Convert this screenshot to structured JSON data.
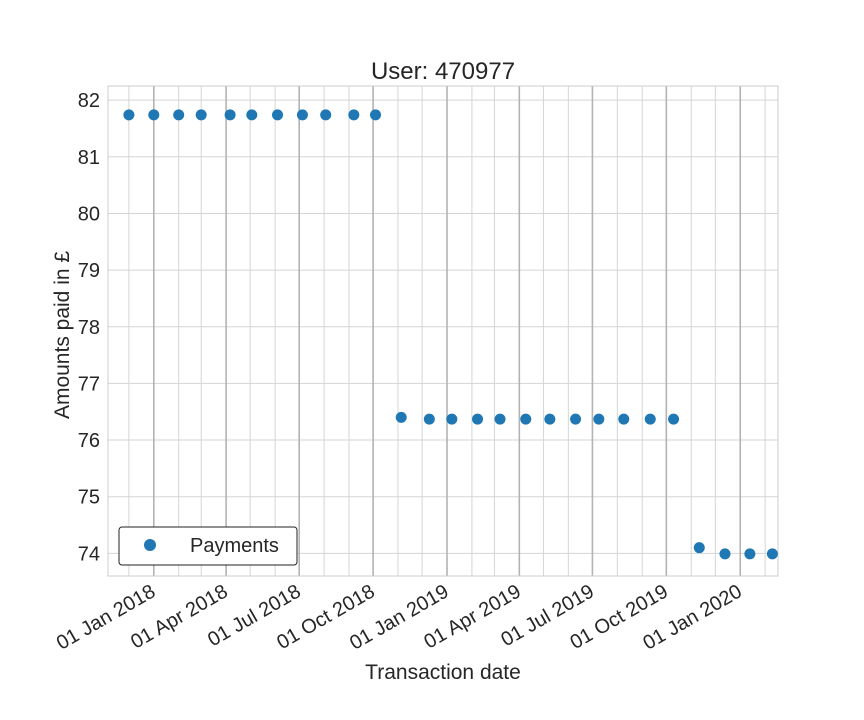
{
  "chart_data": {
    "type": "scatter",
    "title": "User: 470977",
    "xlabel": "Transaction date",
    "ylabel": "Amounts paid in £",
    "ylim": [
      73.6,
      82.25
    ],
    "xlim": [
      "2017-11-05",
      "2020-02-17"
    ],
    "grid": true,
    "legend_placement": "lower-left",
    "series": [
      {
        "name": "Payments",
        "color": "#1f77b4",
        "marker": "circle",
        "points": [
          {
            "x": "2017-12-01",
            "y": 81.74
          },
          {
            "x": "2018-01-01",
            "y": 81.74
          },
          {
            "x": "2018-02-01",
            "y": 81.74
          },
          {
            "x": "2018-03-01",
            "y": 81.74
          },
          {
            "x": "2018-04-06",
            "y": 81.74
          },
          {
            "x": "2018-05-03",
            "y": 81.74
          },
          {
            "x": "2018-06-04",
            "y": 81.74
          },
          {
            "x": "2018-07-05",
            "y": 81.74
          },
          {
            "x": "2018-08-03",
            "y": 81.74
          },
          {
            "x": "2018-09-07",
            "y": 81.74
          },
          {
            "x": "2018-10-04",
            "y": 81.74
          },
          {
            "x": "2018-11-05",
            "y": 76.4
          },
          {
            "x": "2018-12-10",
            "y": 76.37
          },
          {
            "x": "2019-01-07",
            "y": 76.37
          },
          {
            "x": "2019-02-08",
            "y": 76.37
          },
          {
            "x": "2019-03-08",
            "y": 76.37
          },
          {
            "x": "2019-04-09",
            "y": 76.37
          },
          {
            "x": "2019-05-09",
            "y": 76.37
          },
          {
            "x": "2019-06-10",
            "y": 76.37
          },
          {
            "x": "2019-07-09",
            "y": 76.37
          },
          {
            "x": "2019-08-09",
            "y": 76.37
          },
          {
            "x": "2019-09-11",
            "y": 76.37
          },
          {
            "x": "2019-10-10",
            "y": 76.37
          },
          {
            "x": "2019-11-11",
            "y": 74.1
          },
          {
            "x": "2019-12-13",
            "y": 73.99
          },
          {
            "x": "2020-01-13",
            "y": 73.99
          },
          {
            "x": "2020-02-10",
            "y": 73.99
          }
        ]
      }
    ],
    "x_ticks": [
      {
        "date": "2018-01-01",
        "label": "01 Jan 2018"
      },
      {
        "date": "2018-04-01",
        "label": "01 Apr 2018"
      },
      {
        "date": "2018-07-01",
        "label": "01 Jul 2018"
      },
      {
        "date": "2018-10-01",
        "label": "01 Oct 2018"
      },
      {
        "date": "2019-01-01",
        "label": "01 Jan 2019"
      },
      {
        "date": "2019-04-01",
        "label": "01 Apr 2019"
      },
      {
        "date": "2019-07-01",
        "label": "01 Jul 2019"
      },
      {
        "date": "2019-10-01",
        "label": "01 Oct 2019"
      },
      {
        "date": "2020-01-01",
        "label": "01 Jan 2020"
      }
    ],
    "x_minor_gridlines": [
      "2017-12-01",
      "2018-01-01",
      "2018-02-01",
      "2018-03-01",
      "2018-04-01",
      "2018-05-01",
      "2018-06-01",
      "2018-07-01",
      "2018-08-01",
      "2018-09-01",
      "2018-10-01",
      "2018-11-01",
      "2018-12-01",
      "2019-01-01",
      "2019-02-01",
      "2019-03-01",
      "2019-04-01",
      "2019-05-01",
      "2019-06-01",
      "2019-07-01",
      "2019-08-01",
      "2019-09-01",
      "2019-10-01",
      "2019-11-01",
      "2019-12-01",
      "2020-01-01",
      "2020-02-01"
    ],
    "y_ticks": [
      {
        "value": 74,
        "label": "74"
      },
      {
        "value": 75,
        "label": "75"
      },
      {
        "value": 76,
        "label": "76"
      },
      {
        "value": 77,
        "label": "77"
      },
      {
        "value": 78,
        "label": "78"
      },
      {
        "value": 79,
        "label": "79"
      },
      {
        "value": 80,
        "label": "80"
      },
      {
        "value": 81,
        "label": "81"
      },
      {
        "value": 82,
        "label": "82"
      }
    ],
    "legend": [
      {
        "label": "Payments",
        "color": "#1f77b4"
      }
    ]
  }
}
